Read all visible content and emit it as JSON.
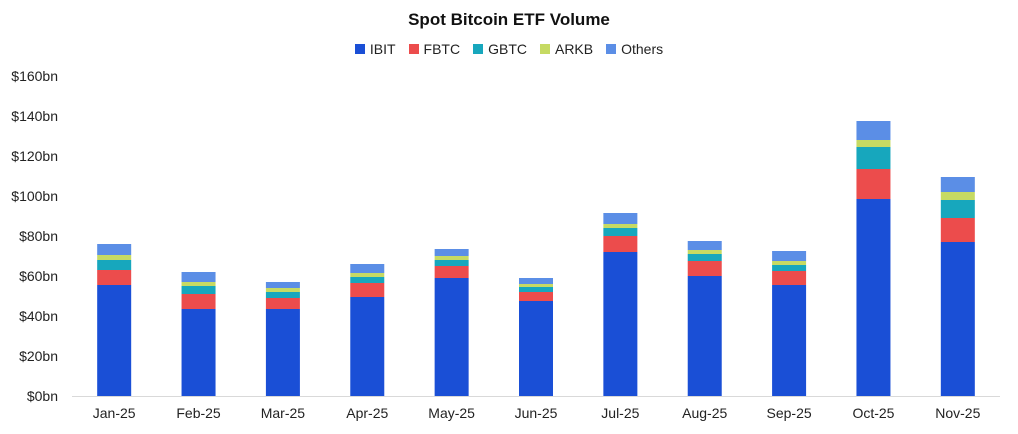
{
  "chart_data": {
    "type": "bar",
    "stacked": true,
    "title": "Spot Bitcoin ETF Volume",
    "xlabel": "",
    "ylabel": "",
    "categories": [
      "Jan-25",
      "Feb-25",
      "Mar-25",
      "Apr-25",
      "May-25",
      "Jun-25",
      "Jul-25",
      "Aug-25",
      "Sep-25",
      "Oct-25",
      "Nov-25"
    ],
    "series": [
      {
        "name": "IBIT",
        "color": "#1a4fd6",
        "values": [
          55.5,
          43.5,
          43.5,
          49.5,
          59,
          47.5,
          72,
          60,
          55.5,
          98.5,
          77
        ]
      },
      {
        "name": "FBTC",
        "color": "#ec4c4c",
        "values": [
          7.5,
          7.5,
          5.5,
          7,
          6,
          4.5,
          8,
          7.5,
          7,
          15,
          12
        ]
      },
      {
        "name": "GBTC",
        "color": "#17a7bd",
        "values": [
          5,
          4,
          3,
          3,
          3,
          2.5,
          4,
          3.5,
          3,
          11,
          9
        ]
      },
      {
        "name": "ARKB",
        "color": "#c6da63",
        "values": [
          2.5,
          2,
          2,
          2,
          2,
          1.5,
          2,
          2,
          2,
          3.5,
          4
        ]
      },
      {
        "name": "Others",
        "color": "#5b8ee6",
        "values": [
          5.5,
          5,
          3,
          4.5,
          3.5,
          3,
          5.5,
          4.5,
          5,
          9.5,
          7.5
        ]
      }
    ],
    "ylim": [
      0,
      160
    ],
    "yticks": [
      0,
      20,
      40,
      60,
      80,
      100,
      120,
      140,
      160
    ],
    "ytick_labels": [
      "$0bn",
      "$20bn",
      "$40bn",
      "$60bn",
      "$80bn",
      "$100bn",
      "$120bn",
      "$140bn",
      "$160bn"
    ],
    "grid": false,
    "legend_position": "top-center"
  }
}
